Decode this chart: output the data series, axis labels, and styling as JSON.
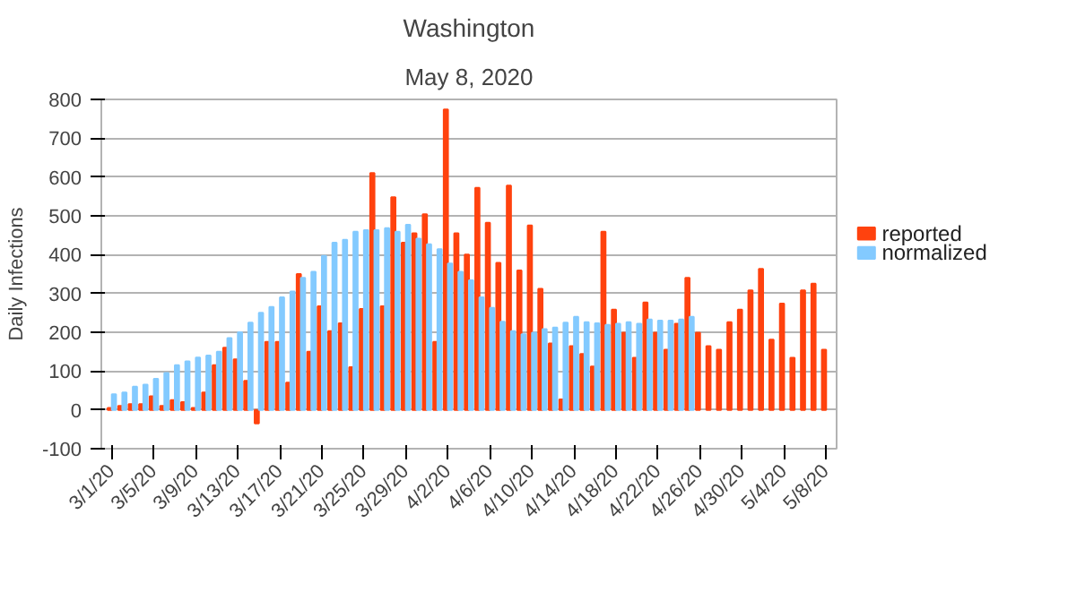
{
  "chart_data": {
    "type": "bar",
    "title": "Washington",
    "subtitle": "May 8, 2020",
    "ylabel": "Daily Infections",
    "categories": [
      "3/1/20",
      null,
      null,
      null,
      "3/5/20",
      null,
      null,
      null,
      "3/9/20",
      null,
      null,
      null,
      "3/13/20",
      null,
      null,
      null,
      "3/17/20",
      null,
      null,
      null,
      "3/21/20",
      null,
      null,
      null,
      "3/25/20",
      null,
      null,
      null,
      "3/29/20",
      null,
      null,
      null,
      "4/2/20",
      null,
      null,
      null,
      "4/6/20",
      null,
      null,
      null,
      "4/10/20",
      null,
      null,
      null,
      "4/14/20",
      null,
      null,
      null,
      "4/18/20",
      null,
      null,
      null,
      "4/22/20",
      null,
      null,
      null,
      "4/26/20",
      null,
      null,
      null,
      "4/30/20",
      null,
      null,
      null,
      "5/4/20",
      null,
      null,
      null,
      "5/8/20"
    ],
    "series": [
      {
        "name": "reported",
        "color": "#ff420e",
        "values": [
          5,
          10,
          15,
          15,
          35,
          10,
          25,
          20,
          5,
          45,
          115,
          160,
          130,
          75,
          -35,
          175,
          175,
          70,
          350,
          150,
          267,
          203,
          223,
          110,
          260,
          610,
          267,
          548,
          431,
          455,
          504,
          175,
          774,
          455,
          400,
          572,
          482,
          379,
          578,
          359,
          475,
          312,
          171,
          27,
          164,
          144,
          112,
          459,
          258,
          199,
          134,
          277,
          199,
          155,
          222,
          340,
          199,
          164,
          155,
          226,
          258,
          308,
          363,
          181,
          274,
          134,
          308,
          325,
          155
        ]
      },
      {
        "name": "normalized",
        "color": "#83caff",
        "values": [
          40,
          45,
          60,
          65,
          80,
          95,
          115,
          125,
          135,
          140,
          150,
          185,
          200,
          225,
          250,
          265,
          290,
          305,
          340,
          356,
          397,
          431,
          438,
          459,
          463,
          463,
          468,
          459,
          477,
          441,
          427,
          414,
          377,
          356,
          334,
          290,
          263,
          227,
          203,
          195,
          199,
          208,
          212,
          225,
          240,
          226,
          223,
          219,
          222,
          226,
          222,
          233,
          230,
          230,
          233,
          240,
          null,
          null,
          null,
          null,
          null,
          null,
          null,
          null,
          null,
          null,
          null,
          null,
          null
        ]
      }
    ],
    "ylim": [
      -100,
      800
    ],
    "yticks": [
      -100,
      0,
      100,
      200,
      300,
      400,
      500,
      600,
      700,
      800
    ],
    "grid": "y",
    "legend": "right"
  }
}
